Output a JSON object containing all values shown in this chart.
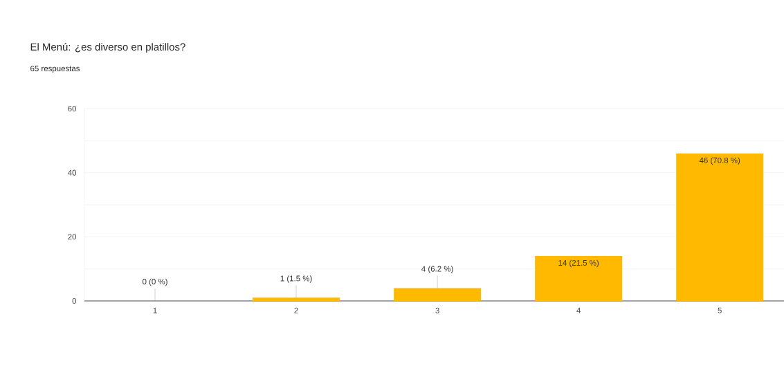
{
  "chart_data": {
    "type": "bar",
    "title": "El Menú: ¿es diverso en platillos?",
    "subtitle": "65 respuestas",
    "categories": [
      "1",
      "2",
      "3",
      "4",
      "5"
    ],
    "values": [
      0,
      1,
      4,
      14,
      46
    ],
    "value_labels": [
      "0 (0 %)",
      "1 (1.5 %)",
      "4 (6.2 %)",
      "14 (21.5 %)",
      "46 (70.8 %)"
    ],
    "color": "#ffb900",
    "ylim": [
      0,
      60
    ],
    "yticks": [
      0,
      {
        "value": 10,
        "label": null
      },
      20,
      {
        "value": 30,
        "label": null
      },
      40,
      {
        "value": 50,
        "label": null
      },
      60
    ],
    "grid": "y"
  }
}
